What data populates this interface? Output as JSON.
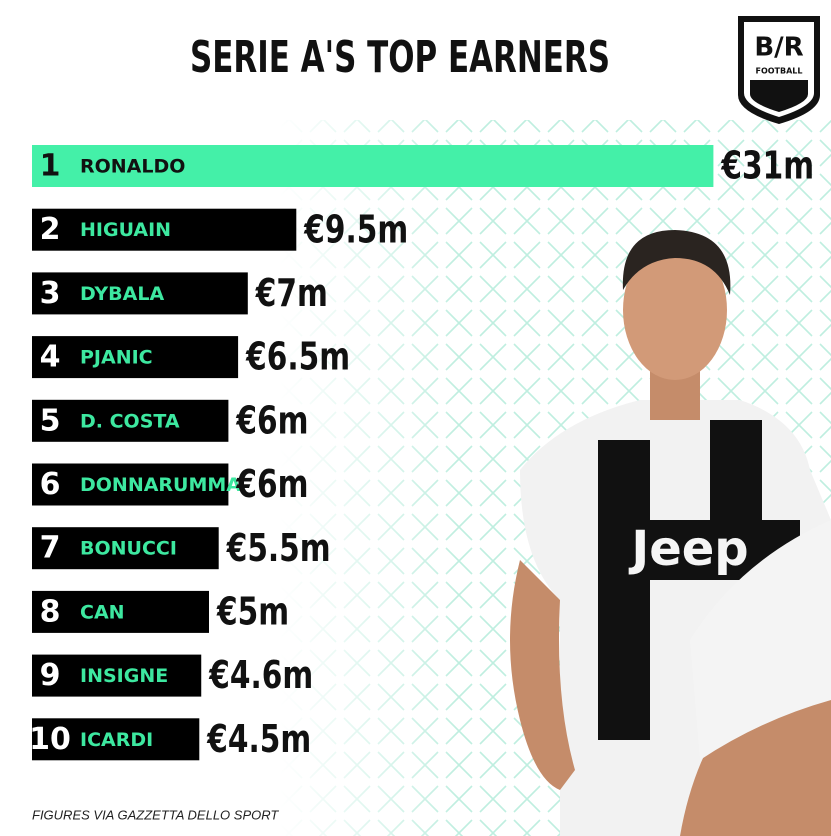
{
  "chart_data": {
    "type": "bar",
    "orientation": "horizontal",
    "title": "SERIE A'S TOP EARNERS",
    "logo": {
      "text": "B/R",
      "subtitle": "FOOTBALL"
    },
    "ranks": [
      1,
      2,
      3,
      4,
      5,
      6,
      7,
      8,
      9,
      10
    ],
    "categories": [
      "RONALDO",
      "HIGUAIN",
      "DYBALA",
      "PJANIC",
      "D. COSTA",
      "DONNARUMMA",
      "BONUCCI",
      "CAN",
      "INSIGNE",
      "ICARDI"
    ],
    "values": [
      31,
      9.5,
      7,
      6.5,
      6,
      6,
      5.5,
      5,
      4.6,
      4.5
    ],
    "value_labels": [
      "€31m",
      "€9.5m",
      "€7m",
      "€6.5m",
      "€6m",
      "€6m",
      "€5.5m",
      "€5m",
      "€4.6m",
      "€4.5m"
    ],
    "colors": [
      "#44f0a8",
      "#000000",
      "#000000",
      "#000000",
      "#000000",
      "#000000",
      "#000000",
      "#000000",
      "#000000",
      "#000000"
    ],
    "source": "FIGURES VIA GAZZETTA DELLO SPORT"
  }
}
